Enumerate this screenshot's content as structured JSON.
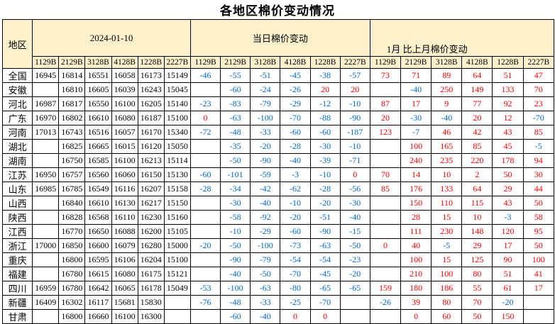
{
  "title": "各地区棉价变动情况",
  "colors": {
    "header_bg": "#FDF0CB",
    "negative": "#0066CC",
    "positive": "#FF0000"
  },
  "table": {
    "region_header": "地区",
    "columns": [
      "1129B",
      "2129B",
      "3128B",
      "4128B",
      "1228B",
      "2227B"
    ],
    "sections": [
      {
        "id": "date",
        "label": "2024-01-10"
      },
      {
        "id": "daily",
        "label": "当日棉价变动"
      },
      {
        "id": "monthly",
        "label": "1月 比上月棉价变动"
      }
    ],
    "rows": [
      {
        "region": "全国",
        "date": [
          "16945",
          "16814",
          "16551",
          "16058",
          "16173",
          "15149"
        ],
        "daily": [
          "-46",
          "-55",
          "-51",
          "-45",
          "-38",
          "-57"
        ],
        "monthly": [
          "73",
          "71",
          "89",
          "64",
          "51",
          "47"
        ]
      },
      {
        "region": "安徽",
        "date": [
          "",
          "16810",
          "16605",
          "16039",
          "16243",
          "15045"
        ],
        "daily": [
          "",
          "-60",
          "-24",
          "-26",
          "20",
          "20"
        ],
        "monthly": [
          "",
          "-40",
          "250",
          "149",
          "133",
          "70"
        ]
      },
      {
        "region": "河北",
        "date": [
          "16987",
          "16817",
          "16550",
          "16100",
          "16205",
          "15140"
        ],
        "daily": [
          "-23",
          "-83",
          "-79",
          "-29",
          "-12",
          "-10"
        ],
        "monthly": [
          "87",
          "17",
          "9",
          "77",
          "92",
          "23"
        ]
      },
      {
        "region": "广东",
        "date": [
          "16970",
          "16802",
          "16610",
          "16080",
          "16187",
          "15100"
        ],
        "daily": [
          "0",
          "-63",
          "-100",
          "-70",
          "-88",
          "-90"
        ],
        "monthly": [
          "20",
          "-30",
          "-40",
          "20",
          "12",
          "-70"
        ]
      },
      {
        "region": "河南",
        "date": [
          "17013",
          "16743",
          "16516",
          "16057",
          "16170",
          "15340"
        ],
        "daily": [
          "-72",
          "-48",
          "-33",
          "-60",
          "-60",
          "-187"
        ],
        "monthly": [
          "123",
          "-7",
          "46",
          "42",
          "43",
          "85"
        ]
      },
      {
        "region": "湖北",
        "date": [
          "",
          "16825",
          "16665",
          "16015",
          "16120",
          "15050"
        ],
        "daily": [
          "",
          "-35",
          "-20",
          "-28",
          "-30",
          "-10"
        ],
        "monthly": [
          "",
          "100",
          "165",
          "85",
          "45",
          "-5"
        ]
      },
      {
        "region": "湖南",
        "date": [
          "",
          "16750",
          "16585",
          "16100",
          "16213",
          "15114"
        ],
        "daily": [
          "",
          "-50",
          "-90",
          "-40",
          "-39",
          "-71"
        ],
        "monthly": [
          "",
          "240",
          "235",
          "220",
          "178",
          "94"
        ]
      },
      {
        "region": "江苏",
        "date": [
          "16950",
          "16757",
          "16560",
          "16060",
          "16150",
          "15130"
        ],
        "daily": [
          "-60",
          "-101",
          "-59",
          "-3",
          "-10",
          "0"
        ],
        "monthly": [
          "70",
          "14",
          "10",
          "2",
          "50",
          "30"
        ]
      },
      {
        "region": "山东",
        "date": [
          "16985",
          "16785",
          "16549",
          "16116",
          "16207",
          "15158"
        ],
        "daily": [
          "-28",
          "-34",
          "-42",
          "-62",
          "-28",
          "-56"
        ],
        "monthly": [
          "85",
          "176",
          "133",
          "64",
          "29",
          "44"
        ]
      },
      {
        "region": "山西",
        "date": [
          "",
          "16840",
          "16610",
          "16130",
          "16217",
          "15150"
        ],
        "daily": [
          "",
          "-30",
          "-40",
          "-10",
          "-20",
          "-30"
        ],
        "monthly": [
          "",
          "150",
          "110",
          "115",
          "43",
          "50"
        ]
      },
      {
        "region": "陕西",
        "date": [
          "",
          "16828",
          "16568",
          "16110",
          "16230",
          "15160"
        ],
        "daily": [
          "",
          "-58",
          "-92",
          "-20",
          "-51",
          "-40"
        ],
        "monthly": [
          "",
          "28",
          "15",
          "10",
          "-3",
          "58"
        ]
      },
      {
        "region": "江西",
        "date": [
          "",
          "16770",
          "16650",
          "16088",
          "16200",
          "15105"
        ],
        "daily": [
          "",
          "-10",
          "-29",
          "-60",
          "-90",
          "-15"
        ],
        "monthly": [
          "",
          "111",
          "230",
          "148",
          "120",
          "95"
        ]
      },
      {
        "region": "浙江",
        "date": [
          "17000",
          "16850",
          "16600",
          "16079",
          "16280",
          "15000"
        ],
        "daily": [
          "-20",
          "-50",
          "-100",
          "-73",
          "-63",
          "-50"
        ],
        "monthly": [
          "0",
          "40",
          "-5",
          "29",
          "17",
          "50"
        ]
      },
      {
        "region": "重庆",
        "date": [
          "",
          "16800",
          "16595",
          "16106",
          "16204",
          "15100"
        ],
        "daily": [
          "",
          "-90",
          "-79",
          "-54",
          "-54",
          "-23"
        ],
        "monthly": [
          "",
          "100",
          "15",
          "125",
          "90",
          "100"
        ]
      },
      {
        "region": "福建",
        "date": [
          "",
          "16780",
          "16615",
          "16080",
          "16175",
          "15121"
        ],
        "daily": [
          "",
          "-40",
          "-50",
          "-70",
          "-45",
          "-20"
        ],
        "monthly": [
          "",
          "210",
          "100",
          "80",
          "51",
          "41"
        ]
      },
      {
        "region": "四川",
        "date": [
          "16959",
          "16780",
          "16642",
          "16065",
          "16178",
          "15049"
        ],
        "daily": [
          "-53",
          "-100",
          "-63",
          "-80",
          "-65",
          "-65"
        ],
        "monthly": [
          "159",
          "180",
          "186",
          "55",
          "61",
          "17"
        ]
      },
      {
        "region": "新疆",
        "date": [
          "16409",
          "16302",
          "16117",
          "15681",
          "15830",
          ""
        ],
        "daily": [
          "-76",
          "-48",
          "-33",
          "-25",
          "-70",
          ""
        ],
        "monthly": [
          "-26",
          "39",
          "80",
          "70",
          "-20",
          ""
        ]
      },
      {
        "region": "甘肃",
        "date": [
          "",
          "16800",
          "16660",
          "16100",
          "16300",
          ""
        ],
        "daily": [
          "",
          "-60",
          "-40",
          "0",
          "0",
          ""
        ],
        "monthly": [
          "",
          "0",
          "60",
          "50",
          "150",
          ""
        ]
      }
    ]
  }
}
